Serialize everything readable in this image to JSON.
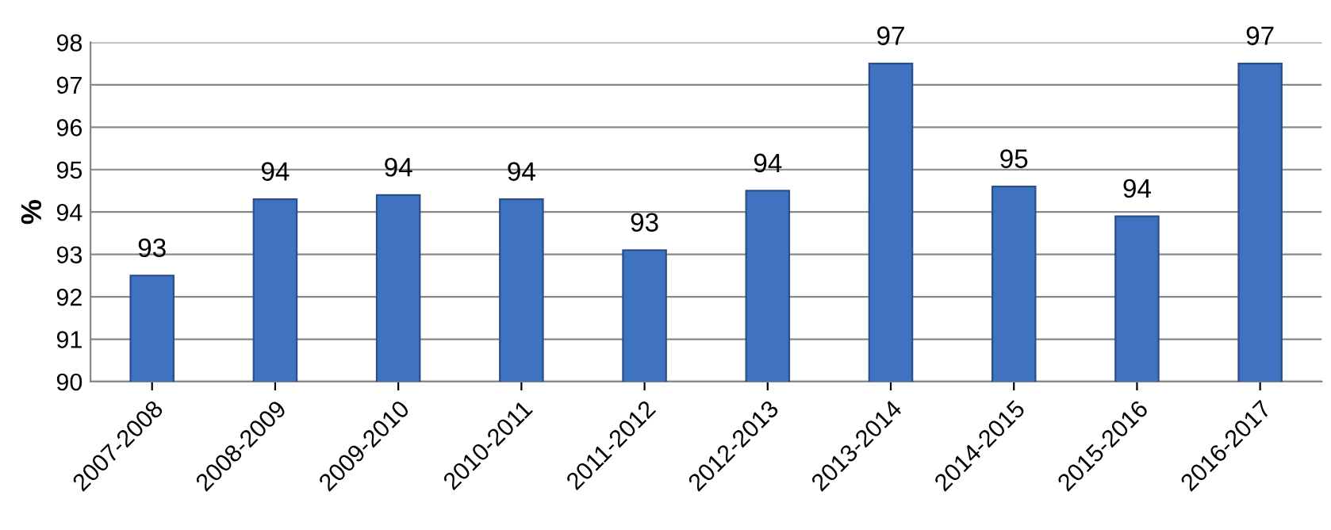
{
  "chart_data": {
    "type": "bar",
    "ylabel": "%",
    "categories": [
      "2007-2008",
      "2008-2009",
      "2009-2010",
      "2010-2011",
      "2011-2012",
      "2012-2013",
      "2013-2014",
      "2014-2015",
      "2015-2016",
      "2016-2017"
    ],
    "values": [
      92.5,
      94.3,
      94.4,
      94.3,
      93.1,
      94.5,
      97.5,
      94.6,
      93.9,
      97.5
    ],
    "value_labels": [
      "93",
      "94",
      "94",
      "94",
      "93",
      "94",
      "97",
      "95",
      "94",
      "97"
    ],
    "color": "#3f72c0",
    "ylim": [
      90,
      98
    ],
    "yticks": [
      90,
      91,
      92,
      93,
      94,
      95,
      96,
      97,
      98
    ],
    "grid": "y"
  }
}
